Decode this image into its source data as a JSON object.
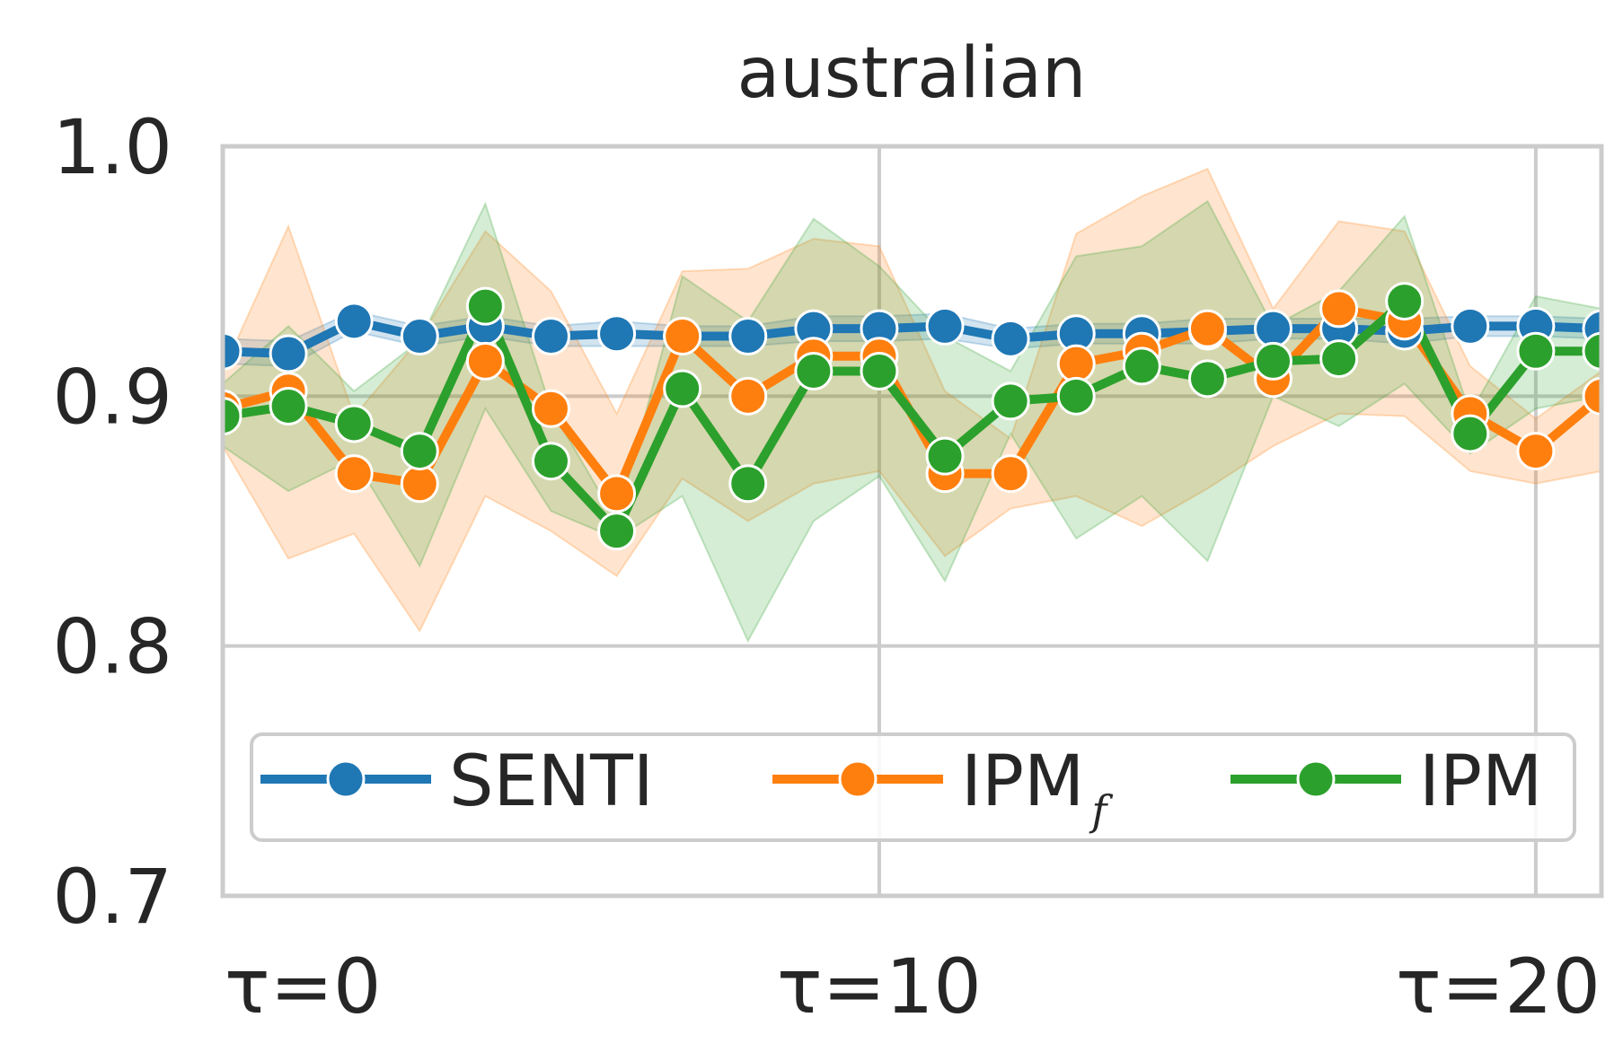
{
  "chart_data": {
    "type": "line",
    "title": "australian",
    "xlabel": "",
    "ylabel": "",
    "x": [
      0,
      1,
      2,
      3,
      4,
      5,
      6,
      7,
      8,
      9,
      10,
      11,
      12,
      13,
      14,
      15,
      16,
      17,
      18,
      19,
      20,
      21
    ],
    "xlim": [
      0,
      21
    ],
    "ylim": [
      0.7,
      1.0
    ],
    "yticks": [
      0.7,
      0.8,
      0.9,
      1.0
    ],
    "ytick_labels": [
      "0.7",
      "0.8",
      "0.9",
      "1.0"
    ],
    "xticks": [
      0,
      10,
      20
    ],
    "xtick_labels": [
      "τ=0",
      "τ=10",
      "τ=20"
    ],
    "grid": true,
    "legend": {
      "placement": "lower-center",
      "ncol": 3
    },
    "series": [
      {
        "name": "SENTI",
        "color": "#1f77b4",
        "values": [
          0.918,
          0.917,
          0.93,
          0.924,
          0.928,
          0.924,
          0.925,
          0.924,
          0.924,
          0.927,
          0.927,
          0.928,
          0.923,
          0.925,
          0.925,
          0.926,
          0.927,
          0.927,
          0.926,
          0.928,
          0.928,
          0.927
        ],
        "lower": [
          0.913,
          0.912,
          0.926,
          0.92,
          0.924,
          0.92,
          0.92,
          0.92,
          0.92,
          0.922,
          0.922,
          0.923,
          0.919,
          0.921,
          0.921,
          0.921,
          0.923,
          0.923,
          0.921,
          0.924,
          0.924,
          0.923
        ],
        "upper": [
          0.923,
          0.922,
          0.934,
          0.928,
          0.932,
          0.928,
          0.93,
          0.928,
          0.928,
          0.932,
          0.932,
          0.933,
          0.927,
          0.929,
          0.929,
          0.931,
          0.931,
          0.931,
          0.931,
          0.932,
          0.932,
          0.931
        ]
      },
      {
        "name": "IPM",
        "name_subscript": "f",
        "color": "#ff7f0e",
        "values": [
          0.895,
          0.902,
          0.869,
          0.865,
          0.914,
          0.895,
          0.861,
          0.924,
          0.9,
          0.916,
          0.916,
          0.869,
          0.869,
          0.913,
          0.918,
          0.927,
          0.907,
          0.935,
          0.93,
          0.893,
          0.878,
          0.9
        ],
        "lower": [
          0.88,
          0.835,
          0.845,
          0.806,
          0.86,
          0.846,
          0.828,
          0.867,
          0.85,
          0.865,
          0.87,
          0.836,
          0.855,
          0.86,
          0.848,
          0.863,
          0.88,
          0.893,
          0.892,
          0.87,
          0.865,
          0.87
        ],
        "upper": [
          0.91,
          0.968,
          0.892,
          0.923,
          0.966,
          0.942,
          0.893,
          0.95,
          0.951,
          0.963,
          0.96,
          0.902,
          0.883,
          0.965,
          0.98,
          0.991,
          0.935,
          0.97,
          0.966,
          0.912,
          0.891,
          0.91
        ]
      },
      {
        "name": "IPM",
        "color": "#2ca02c",
        "values": [
          0.892,
          0.896,
          0.889,
          0.878,
          0.936,
          0.874,
          0.846,
          0.903,
          0.865,
          0.91,
          0.91,
          0.876,
          0.898,
          0.9,
          0.912,
          0.907,
          0.914,
          0.915,
          0.938,
          0.885,
          0.918,
          0.918
        ],
        "lower": [
          0.88,
          0.862,
          0.875,
          0.832,
          0.895,
          0.854,
          0.843,
          0.86,
          0.802,
          0.85,
          0.868,
          0.826,
          0.885,
          0.843,
          0.86,
          0.834,
          0.9,
          0.888,
          0.905,
          0.877,
          0.895,
          0.9
        ],
        "upper": [
          0.905,
          0.928,
          0.902,
          0.922,
          0.977,
          0.895,
          0.85,
          0.948,
          0.93,
          0.971,
          0.952,
          0.924,
          0.91,
          0.956,
          0.96,
          0.978,
          0.928,
          0.942,
          0.972,
          0.893,
          0.94,
          0.935
        ]
      }
    ]
  }
}
